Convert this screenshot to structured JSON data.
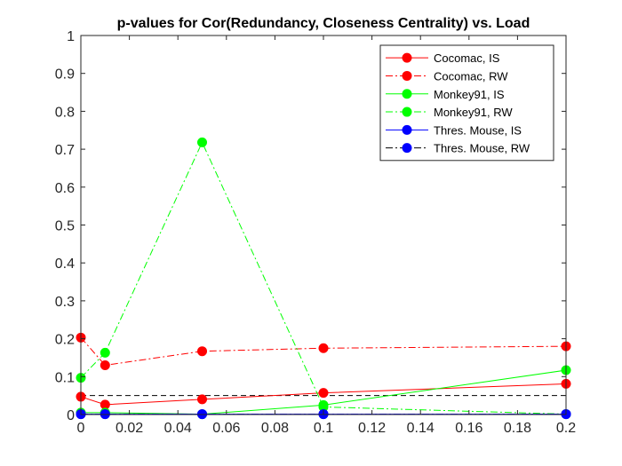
{
  "chart_data": {
    "type": "line",
    "title": "p-values for Cor(Redundancy, Closeness Centrality) vs. Load",
    "xlabel": "",
    "ylabel": "",
    "xlim": [
      0,
      0.2
    ],
    "ylim": [
      0,
      1
    ],
    "xticks": [
      0,
      0.02,
      0.04,
      0.06,
      0.08,
      0.1,
      0.12,
      0.14,
      0.16,
      0.18,
      0.2
    ],
    "xtick_labels": [
      "0",
      "0.02",
      "0.04",
      "0.06",
      "0.08",
      "0.1",
      "0.12",
      "0.14",
      "0.16",
      "0.18",
      "0.2"
    ],
    "yticks": [
      0,
      0.1,
      0.2,
      0.3,
      0.4,
      0.5,
      0.6,
      0.7,
      0.8,
      0.9,
      1
    ],
    "ytick_labels": [
      "0",
      "0.1",
      "0.2",
      "0.3",
      "0.4",
      "0.5",
      "0.6",
      "0.7",
      "0.8",
      "0.9",
      "1"
    ],
    "grid": false,
    "legend_position": "top-right",
    "x": [
      0,
      0.01,
      0.05,
      0.1,
      0.2
    ],
    "series": [
      {
        "name": "Cocomac, IS",
        "color": "#ff0000",
        "linestyle": "solid",
        "values": [
          0.047,
          0.026,
          0.04,
          0.057,
          0.081
        ]
      },
      {
        "name": "Cocomac, RW",
        "color": "#ff0000",
        "linestyle": "dashdot",
        "values": [
          0.203,
          0.13,
          0.167,
          0.175,
          0.18
        ]
      },
      {
        "name": "Monkey91, IS",
        "color": "#00ff00",
        "linestyle": "solid",
        "values": [
          0.005,
          0.005,
          0.001,
          0.025,
          0.117
        ]
      },
      {
        "name": "Monkey91, RW",
        "color": "#00ff00",
        "linestyle": "dashdot",
        "values": [
          0.097,
          0.163,
          0.718,
          0.02,
          0.001
        ]
      },
      {
        "name": "Thres. Mouse, IS",
        "color": "#0000ff",
        "linestyle": "solid",
        "values": [
          0.001,
          0.001,
          0.001,
          0.001,
          0.001
        ]
      },
      {
        "name": "Thres. Mouse, RW",
        "color": "#0000ff",
        "linestyle": "dashdot",
        "values": [
          0.001,
          0.001,
          0.001,
          0.001,
          0.001
        ]
      }
    ],
    "reference_line": {
      "y": 0.05,
      "color": "#000000",
      "linestyle": "dashed"
    },
    "legend_entries": [
      {
        "label": "Cocomac, IS",
        "color": "#ff0000",
        "linestyle": "solid"
      },
      {
        "label": "Cocomac, RW",
        "color": "#ff0000",
        "linestyle": "dashdot"
      },
      {
        "label": "Monkey91, IS",
        "color": "#00ff00",
        "linestyle": "solid"
      },
      {
        "label": "Monkey91, RW",
        "color": "#00ff00",
        "linestyle": "dashdot"
      },
      {
        "label": "Thres. Mouse, IS",
        "color": "#0000ff",
        "linestyle": "solid"
      },
      {
        "label": "Thres. Mouse, RW",
        "color": "#000000",
        "marker_color": "#0000ff",
        "linestyle": "dashdot"
      }
    ]
  }
}
